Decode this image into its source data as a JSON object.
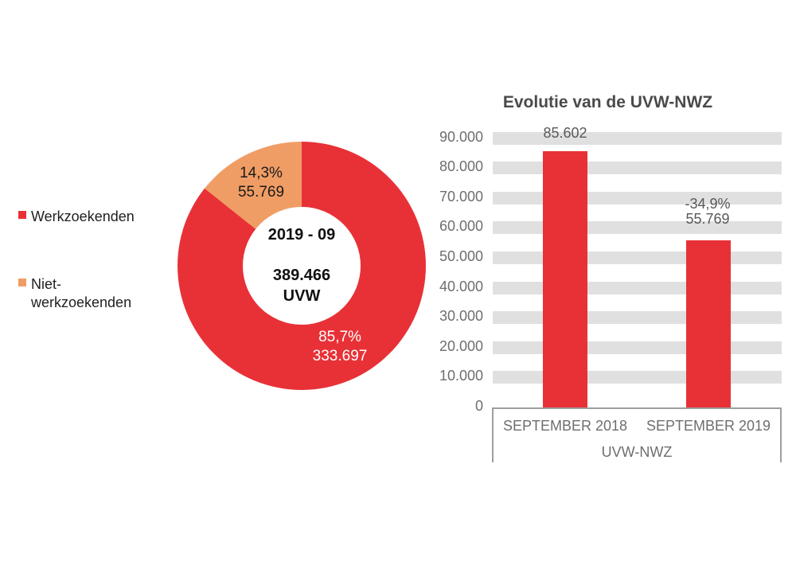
{
  "colors": {
    "red": "#e83137",
    "orange": "#f09d65",
    "stripe_gray": "#e0e0e0",
    "axis_text_gray": "#6e6e6e",
    "title_gray": "#4a4a4a",
    "legend_text": "#1f1f1f",
    "box_border_gray": "#9e9e9e",
    "background": "#ffffff"
  },
  "legend": {
    "items": [
      {
        "label": "Werkzoekenden",
        "color": "#e83137"
      },
      {
        "label": "Niet-\nwerkzoekenden",
        "color": "#f09d65"
      }
    ]
  },
  "chart_data": [
    {
      "type": "pie",
      "subtype": "donut",
      "center_label": {
        "period": "2019 - 09",
        "total": "389.466",
        "unit": "UVW"
      },
      "slices": [
        {
          "name": "Werkzoekenden",
          "value": 333697,
          "pct": 85.7,
          "pct_label": "85,7%",
          "value_label": "333.697",
          "color": "#e83137",
          "label_color": "#ffffff"
        },
        {
          "name": "Niet-werkzoekenden",
          "value": 55769,
          "pct": 14.3,
          "pct_label": "14,3%",
          "value_label": "55.769",
          "color": "#f09d65",
          "label_color": "#1a1a1a"
        }
      ],
      "start_angle_deg": 0,
      "direction": "clockwise"
    },
    {
      "type": "bar",
      "title": "Evolutie van de UVW-NWZ",
      "categories": [
        "SEPTEMBER 2018",
        "SEPTEMBER 2019"
      ],
      "values": [
        85602,
        55769
      ],
      "bar_labels": [
        [
          "85.602"
        ],
        [
          "-34,9%",
          "55.769"
        ]
      ],
      "group_label": "UVW-NWZ",
      "bar_color": "#e83137",
      "ylim": [
        0,
        90000
      ],
      "y_tick_step": 10000,
      "y_ticks": [
        "0",
        "10.000",
        "20.000",
        "30.000",
        "40.000",
        "50.000",
        "60.000",
        "70.000",
        "80.000",
        "90.000"
      ],
      "gridline_style": "thick light-gray horizontal bands",
      "legend_position": "none"
    }
  ]
}
